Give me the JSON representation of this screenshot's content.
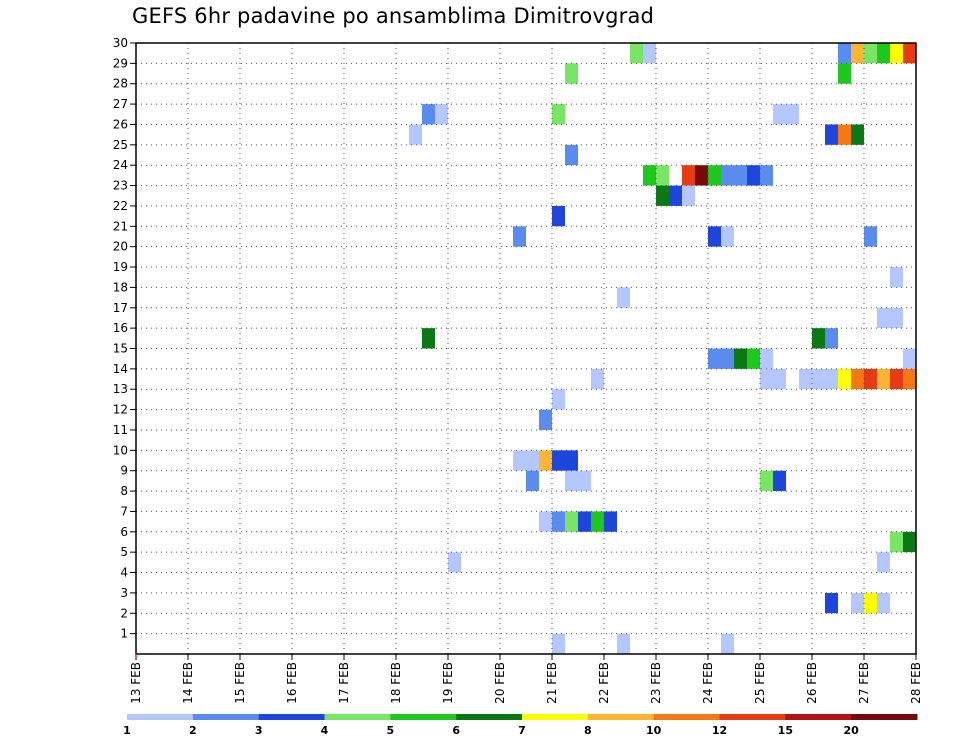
{
  "chart_data": {
    "type": "heatmap",
    "title": "GEFS 6hr padavine po ansamblima Dimitrovgrad",
    "x_ticks": [
      "13 FEB",
      "14 FEB",
      "15 FEB",
      "16 FEB",
      "17 FEB",
      "18 FEB",
      "19 FEB",
      "20 FEB",
      "21 FEB",
      "22 FEB",
      "23 FEB",
      "24 FEB",
      "25 FEB",
      "26 FEB",
      "27 FEB",
      "28 FEB"
    ],
    "y_ticks": [
      "1",
      "2",
      "3",
      "4",
      "5",
      "6",
      "7",
      "8",
      "9",
      "10",
      "11",
      "12",
      "13",
      "14",
      "15",
      "16",
      "17",
      "18",
      "19",
      "20",
      "21",
      "22",
      "23",
      "24",
      "25",
      "26",
      "27",
      "28",
      "29",
      "30"
    ],
    "xlim": [
      0,
      15
    ],
    "ylim": [
      0,
      30
    ],
    "x_step_days": 0.25,
    "grid": true,
    "legend_placement": "bottom",
    "legend": {
      "labels": [
        "1",
        "2",
        "3",
        "4",
        "5",
        "6",
        "7",
        "8",
        "10",
        "12",
        "15",
        "20"
      ],
      "colors": [
        "#b4c8ff",
        "#5a8cf0",
        "#1e46dc",
        "#78e664",
        "#1ec81e",
        "#0a7814",
        "#ffff00",
        "#ffb432",
        "#f57814",
        "#e63c14",
        "#b41414",
        "#780a0a"
      ]
    },
    "cells": [
      {
        "m": 30,
        "x": 9.5,
        "c": 4
      },
      {
        "m": 30,
        "x": 9.75,
        "c": 1
      },
      {
        "m": 30,
        "x": 13.5,
        "c": 2
      },
      {
        "m": 30,
        "x": 13.75,
        "c": 8
      },
      {
        "m": 30,
        "x": 14.0,
        "c": 4
      },
      {
        "m": 30,
        "x": 14.25,
        "c": 5
      },
      {
        "m": 30,
        "x": 14.5,
        "c": 7
      },
      {
        "m": 30,
        "x": 14.75,
        "c": 10
      },
      {
        "m": 29,
        "x": 8.25,
        "c": 4
      },
      {
        "m": 29,
        "x": 13.5,
        "c": 5
      },
      {
        "m": 27,
        "x": 5.5,
        "c": 2
      },
      {
        "m": 27,
        "x": 5.75,
        "c": 1
      },
      {
        "m": 27,
        "x": 8.0,
        "c": 4
      },
      {
        "m": 27,
        "x": 12.25,
        "c": 1
      },
      {
        "m": 27,
        "x": 12.5,
        "c": 1
      },
      {
        "m": 26,
        "x": 5.25,
        "c": 1
      },
      {
        "m": 26,
        "x": 13.25,
        "c": 3
      },
      {
        "m": 26,
        "x": 13.5,
        "c": 9
      },
      {
        "m": 26,
        "x": 13.75,
        "c": 6
      },
      {
        "m": 25,
        "x": 8.25,
        "c": 2
      },
      {
        "m": 24,
        "x": 9.75,
        "c": 5
      },
      {
        "m": 24,
        "x": 10.0,
        "c": 4
      },
      {
        "m": 24,
        "x": 10.5,
        "c": 10
      },
      {
        "m": 24,
        "x": 10.75,
        "c": 12
      },
      {
        "m": 24,
        "x": 11.0,
        "c": 5
      },
      {
        "m": 24,
        "x": 11.25,
        "c": 2
      },
      {
        "m": 24,
        "x": 11.5,
        "c": 2
      },
      {
        "m": 24,
        "x": 11.75,
        "c": 3
      },
      {
        "m": 24,
        "x": 12.0,
        "c": 2
      },
      {
        "m": 23,
        "x": 10.0,
        "c": 6
      },
      {
        "m": 23,
        "x": 10.25,
        "c": 3
      },
      {
        "m": 23,
        "x": 10.5,
        "c": 1
      },
      {
        "m": 22,
        "x": 8.0,
        "c": 3
      },
      {
        "m": 21,
        "x": 7.25,
        "c": 2
      },
      {
        "m": 21,
        "x": 11.0,
        "c": 3
      },
      {
        "m": 21,
        "x": 11.25,
        "c": 1
      },
      {
        "m": 21,
        "x": 14.0,
        "c": 2
      },
      {
        "m": 19,
        "x": 14.5,
        "c": 1
      },
      {
        "m": 18,
        "x": 9.25,
        "c": 1
      },
      {
        "m": 17,
        "x": 14.25,
        "c": 1
      },
      {
        "m": 17,
        "x": 14.5,
        "c": 1
      },
      {
        "m": 16,
        "x": 5.5,
        "c": 6
      },
      {
        "m": 16,
        "x": 13.0,
        "c": 6
      },
      {
        "m": 16,
        "x": 13.25,
        "c": 2
      },
      {
        "m": 15,
        "x": 11.0,
        "c": 2
      },
      {
        "m": 15,
        "x": 11.25,
        "c": 2
      },
      {
        "m": 15,
        "x": 11.5,
        "c": 6
      },
      {
        "m": 15,
        "x": 11.75,
        "c": 5
      },
      {
        "m": 15,
        "x": 12.0,
        "c": 1
      },
      {
        "m": 15,
        "x": 14.75,
        "c": 1
      },
      {
        "m": 14,
        "x": 8.75,
        "c": 1
      },
      {
        "m": 14,
        "x": 12.0,
        "c": 1
      },
      {
        "m": 14,
        "x": 12.25,
        "c": 1
      },
      {
        "m": 14,
        "x": 12.75,
        "c": 1
      },
      {
        "m": 14,
        "x": 13.0,
        "c": 1
      },
      {
        "m": 14,
        "x": 13.25,
        "c": 1
      },
      {
        "m": 14,
        "x": 13.5,
        "c": 7
      },
      {
        "m": 14,
        "x": 13.75,
        "c": 9
      },
      {
        "m": 14,
        "x": 14.0,
        "c": 10
      },
      {
        "m": 14,
        "x": 14.25,
        "c": 8
      },
      {
        "m": 14,
        "x": 14.5,
        "c": 10
      },
      {
        "m": 14,
        "x": 14.75,
        "c": 9
      },
      {
        "m": 13,
        "x": 8.0,
        "c": 1
      },
      {
        "m": 12,
        "x": 7.75,
        "c": 2
      },
      {
        "m": 10,
        "x": 7.25,
        "c": 1
      },
      {
        "m": 10,
        "x": 7.5,
        "c": 1
      },
      {
        "m": 10,
        "x": 7.75,
        "c": 8
      },
      {
        "m": 10,
        "x": 8.0,
        "c": 3
      },
      {
        "m": 10,
        "x": 8.25,
        "c": 3
      },
      {
        "m": 9,
        "x": 7.5,
        "c": 2
      },
      {
        "m": 9,
        "x": 8.25,
        "c": 1
      },
      {
        "m": 9,
        "x": 8.5,
        "c": 1
      },
      {
        "m": 9,
        "x": 12.0,
        "c": 4
      },
      {
        "m": 9,
        "x": 12.25,
        "c": 3
      },
      {
        "m": 7,
        "x": 7.75,
        "c": 1
      },
      {
        "m": 7,
        "x": 8.0,
        "c": 2
      },
      {
        "m": 7,
        "x": 8.25,
        "c": 4
      },
      {
        "m": 7,
        "x": 8.5,
        "c": 3
      },
      {
        "m": 7,
        "x": 8.75,
        "c": 5
      },
      {
        "m": 7,
        "x": 9.0,
        "c": 3
      },
      {
        "m": 6,
        "x": 14.5,
        "c": 4
      },
      {
        "m": 6,
        "x": 14.75,
        "c": 6
      },
      {
        "m": 5,
        "x": 6.0,
        "c": 1
      },
      {
        "m": 5,
        "x": 14.25,
        "c": 1
      },
      {
        "m": 3,
        "x": 13.25,
        "c": 3
      },
      {
        "m": 3,
        "x": 13.75,
        "c": 1
      },
      {
        "m": 3,
        "x": 14.0,
        "c": 7
      },
      {
        "m": 3,
        "x": 14.25,
        "c": 1
      },
      {
        "m": 1,
        "x": 8.0,
        "c": 1
      },
      {
        "m": 1,
        "x": 9.25,
        "c": 1
      },
      {
        "m": 1,
        "x": 11.25,
        "c": 1
      }
    ]
  }
}
